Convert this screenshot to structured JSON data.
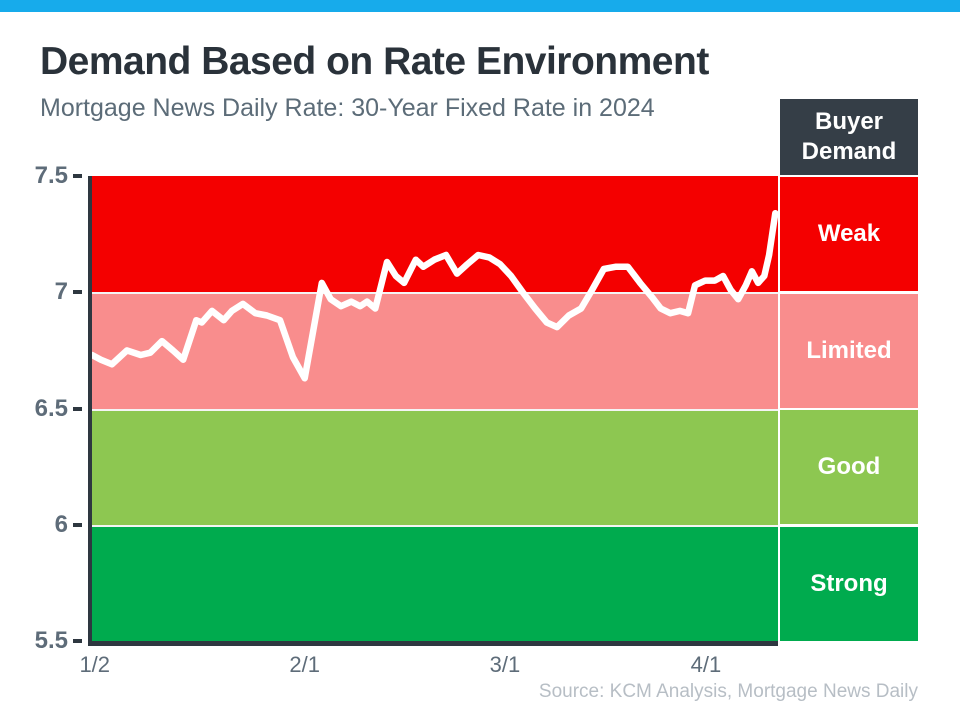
{
  "page": {
    "title": "Demand Based on Rate Environment",
    "subtitle": "Mortgage News Daily Rate: 30-Year Fixed Rate in 2024",
    "source": "Source: KCM Analysis, Mortgage News Daily",
    "accent_bar_color": "#17ABEB"
  },
  "legend": {
    "header": "Buyer Demand",
    "header_bg": "#353E47"
  },
  "chart_data": {
    "type": "line",
    "title": "Demand Based on Rate Environment",
    "subtitle": "Mortgage News Daily Rate: 30-Year Fixed Rate in 2024",
    "line_color": "#FFFFFF",
    "grid": false,
    "legend_position": "right",
    "y_axis": {
      "min": 5.5,
      "max": 7.5,
      "ticks": [
        7.5,
        7,
        6.5,
        6,
        5.5
      ],
      "tick_labels": [
        "7.5",
        "7",
        "6.5",
        "6",
        "5.5"
      ]
    },
    "x_axis": {
      "ticks": [
        {
          "label": "1/2",
          "pct": 0.4
        },
        {
          "label": "2/1",
          "pct": 31.0
        },
        {
          "label": "3/1",
          "pct": 60.2
        },
        {
          "label": "4/1",
          "pct": 89.5
        }
      ]
    },
    "bands": [
      {
        "label": "Weak",
        "from": 7.0,
        "to": 7.5,
        "color": "#F40000"
      },
      {
        "label": "Limited",
        "from": 6.5,
        "to": 7.0,
        "color": "#F98D8D"
      },
      {
        "label": "Good",
        "from": 6.0,
        "to": 6.5,
        "color": "#8DC751"
      },
      {
        "label": "Strong",
        "from": 5.5,
        "to": 6.0,
        "color": "#00AB4E"
      }
    ],
    "series": [
      {
        "name": "30-Year Fixed Rate",
        "points": [
          [
            0.0,
            6.73
          ],
          [
            1.3,
            6.71
          ],
          [
            2.9,
            6.69
          ],
          [
            5.1,
            6.75
          ],
          [
            7.1,
            6.73
          ],
          [
            8.5,
            6.74
          ],
          [
            10.2,
            6.79
          ],
          [
            11.8,
            6.75
          ],
          [
            13.3,
            6.71
          ],
          [
            15.2,
            6.88
          ],
          [
            16.0,
            6.87
          ],
          [
            17.5,
            6.92
          ],
          [
            19.2,
            6.88
          ],
          [
            20.4,
            6.92
          ],
          [
            22.0,
            6.95
          ],
          [
            23.8,
            6.91
          ],
          [
            25.5,
            6.9
          ],
          [
            27.4,
            6.88
          ],
          [
            29.3,
            6.72
          ],
          [
            31.0,
            6.63
          ],
          [
            33.5,
            7.04
          ],
          [
            34.8,
            6.97
          ],
          [
            36.3,
            6.94
          ],
          [
            37.8,
            6.96
          ],
          [
            39.1,
            6.94
          ],
          [
            40.1,
            6.96
          ],
          [
            41.3,
            6.93
          ],
          [
            43.0,
            7.13
          ],
          [
            44.3,
            7.07
          ],
          [
            45.5,
            7.04
          ],
          [
            47.2,
            7.14
          ],
          [
            48.3,
            7.11
          ],
          [
            49.9,
            7.14
          ],
          [
            51.6,
            7.16
          ],
          [
            53.2,
            7.08
          ],
          [
            54.7,
            7.12
          ],
          [
            56.3,
            7.16
          ],
          [
            57.9,
            7.15
          ],
          [
            59.5,
            7.12
          ],
          [
            61.1,
            7.07
          ],
          [
            62.8,
            7.0
          ],
          [
            64.6,
            6.93
          ],
          [
            66.3,
            6.87
          ],
          [
            67.8,
            6.85
          ],
          [
            69.5,
            6.9
          ],
          [
            71.3,
            6.93
          ],
          [
            72.9,
            7.01
          ],
          [
            74.6,
            7.1
          ],
          [
            76.4,
            7.11
          ],
          [
            78.1,
            7.11
          ],
          [
            79.9,
            7.04
          ],
          [
            81.6,
            6.98
          ],
          [
            82.9,
            6.93
          ],
          [
            84.3,
            6.91
          ],
          [
            85.7,
            6.92
          ],
          [
            86.9,
            6.91
          ],
          [
            87.9,
            7.03
          ],
          [
            89.4,
            7.05
          ],
          [
            90.8,
            7.05
          ],
          [
            92.0,
            7.07
          ],
          [
            93.1,
            7.01
          ],
          [
            94.2,
            6.97
          ],
          [
            95.3,
            7.03
          ],
          [
            96.2,
            7.09
          ],
          [
            97.1,
            7.04
          ],
          [
            98.0,
            7.07
          ],
          [
            98.7,
            7.16
          ],
          [
            99.6,
            7.34
          ]
        ]
      }
    ]
  }
}
